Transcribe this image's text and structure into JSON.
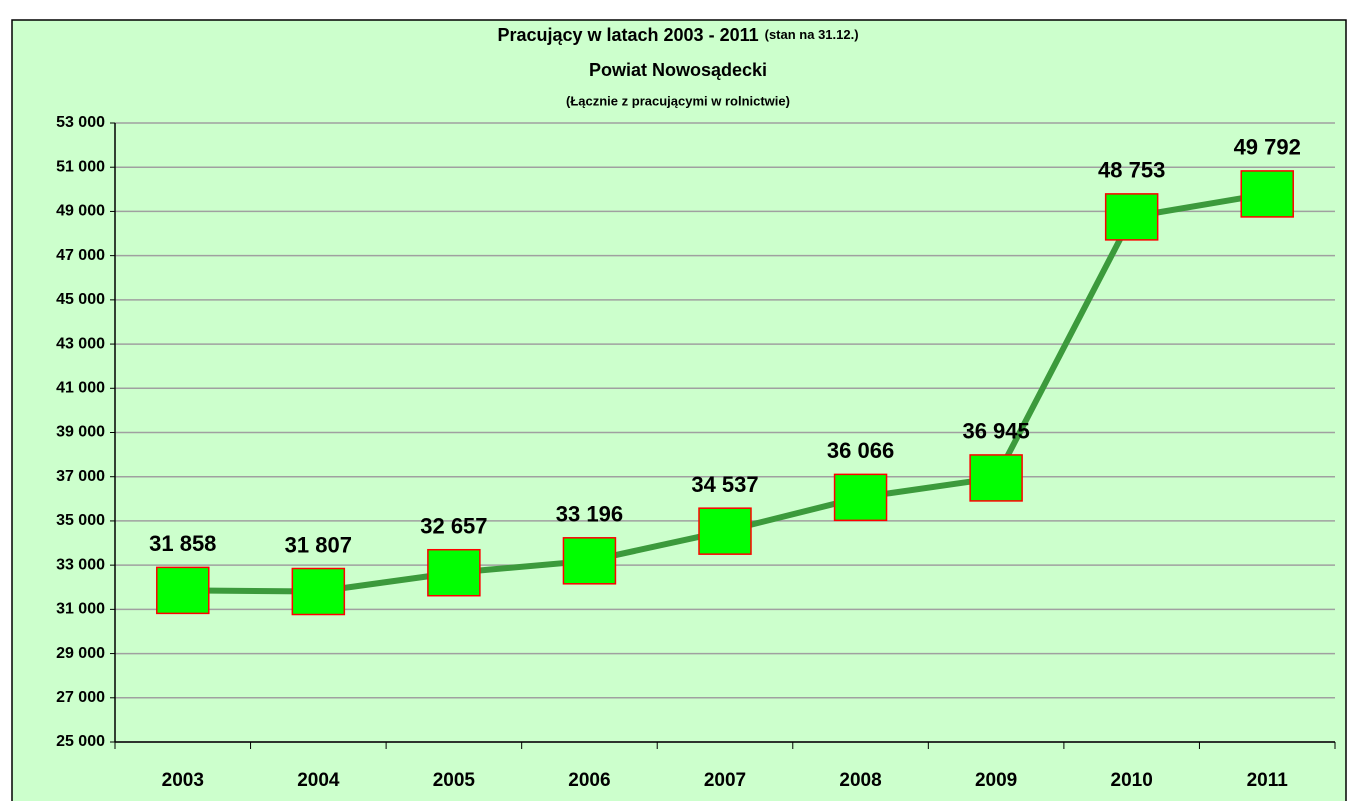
{
  "chart_data": {
    "type": "line",
    "title": "Pracujący w latach 2003 - 2011",
    "title_note": "(stan na 31.12.)",
    "subtitle": "Powiat Nowosądecki",
    "subtitle2": "(Łącznie z pracującymi w rolnictwie)",
    "categories": [
      "2003",
      "2004",
      "2005",
      "2006",
      "2007",
      "2008",
      "2009",
      "2010",
      "2011"
    ],
    "series": [
      {
        "name": "Pracujący",
        "color": "#3c9a3c",
        "marker_color": "#00ff00",
        "marker_edge": "#ff0000",
        "values": [
          31858,
          31807,
          32657,
          33196,
          34537,
          36066,
          36945,
          48753,
          49792
        ],
        "value_labels": [
          "31 858",
          "31 807",
          "32 657",
          "33 196",
          "34 537",
          "36 066",
          "36 945",
          "48 753",
          "49 792"
        ]
      }
    ],
    "ylim": [
      25000,
      53000
    ],
    "yticks": [
      {
        "value": 25000,
        "label": "25 000"
      },
      {
        "value": 27000,
        "label": "27 000"
      },
      {
        "value": 29000,
        "label": "29 000"
      },
      {
        "value": 31000,
        "label": "31 000"
      },
      {
        "value": 33000,
        "label": "33 000"
      },
      {
        "value": 35000,
        "label": "35 000"
      },
      {
        "value": 37000,
        "label": "37 000"
      },
      {
        "value": 39000,
        "label": "39 000"
      },
      {
        "value": 41000,
        "label": "41 000"
      },
      {
        "value": 43000,
        "label": "43 000"
      },
      {
        "value": 45000,
        "label": "45 000"
      },
      {
        "value": 47000,
        "label": "47 000"
      },
      {
        "value": 49000,
        "label": "49 000"
      },
      {
        "value": 51000,
        "label": "51 000"
      },
      {
        "value": 53000,
        "label": "53 000"
      }
    ],
    "grid": true,
    "background": "#ccffcc"
  }
}
